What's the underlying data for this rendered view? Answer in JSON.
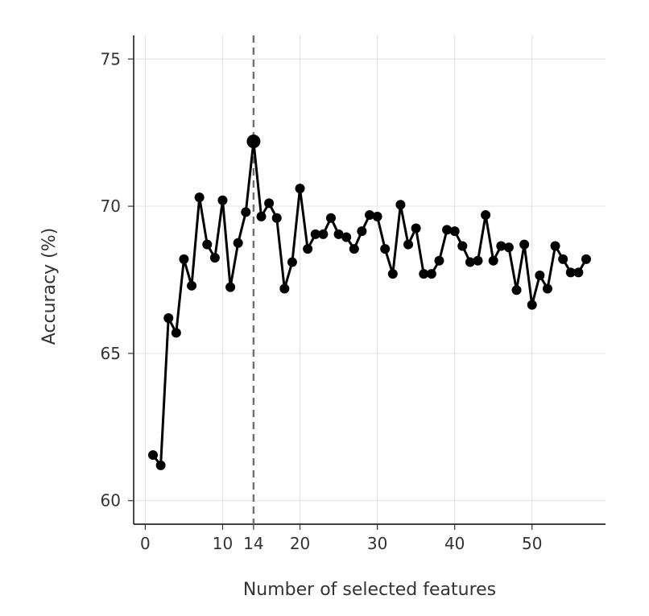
{
  "chart_data": {
    "type": "line",
    "title": "",
    "xlabel": "Number of selected features",
    "ylabel": "Accuracy (%)",
    "xlim": [
      -1.5,
      59.5
    ],
    "ylim": [
      59.2,
      75.8
    ],
    "xticks": [
      0,
      10,
      14,
      20,
      30,
      40,
      50
    ],
    "yticks": [
      60,
      65,
      70,
      75
    ],
    "xgrid": [
      0,
      10,
      20,
      30,
      40,
      50
    ],
    "grid": true,
    "reference_line": {
      "x": 14,
      "style": "dashed"
    },
    "highlight_point": {
      "x": 14,
      "y": 72.2
    },
    "series": [
      {
        "name": "Accuracy",
        "x": [
          1,
          2,
          3,
          4,
          5,
          6,
          7,
          8,
          9,
          10,
          11,
          12,
          13,
          14,
          15,
          16,
          17,
          18,
          19,
          20,
          21,
          22,
          23,
          24,
          25,
          26,
          27,
          28,
          29,
          30,
          31,
          32,
          33,
          34,
          35,
          36,
          37,
          38,
          39,
          40,
          41,
          42,
          43,
          44,
          45,
          46,
          47,
          48,
          49,
          50,
          51,
          52,
          53,
          54,
          55,
          56,
          57
        ],
        "y": [
          61.55,
          61.2,
          66.2,
          65.7,
          68.2,
          67.3,
          70.3,
          68.7,
          68.25,
          70.2,
          67.25,
          68.75,
          69.8,
          72.2,
          69.65,
          70.1,
          69.6,
          67.2,
          68.1,
          70.6,
          68.55,
          69.05,
          69.05,
          69.6,
          69.05,
          68.95,
          68.55,
          69.15,
          69.7,
          69.65,
          68.55,
          67.7,
          70.05,
          68.7,
          69.25,
          67.7,
          67.7,
          68.15,
          69.2,
          69.15,
          68.65,
          68.1,
          68.15,
          69.7,
          68.15,
          68.65,
          68.6,
          67.15,
          68.7,
          66.65,
          67.65,
          67.2,
          68.65,
          68.2,
          67.75,
          67.75,
          68.2
        ]
      }
    ]
  }
}
